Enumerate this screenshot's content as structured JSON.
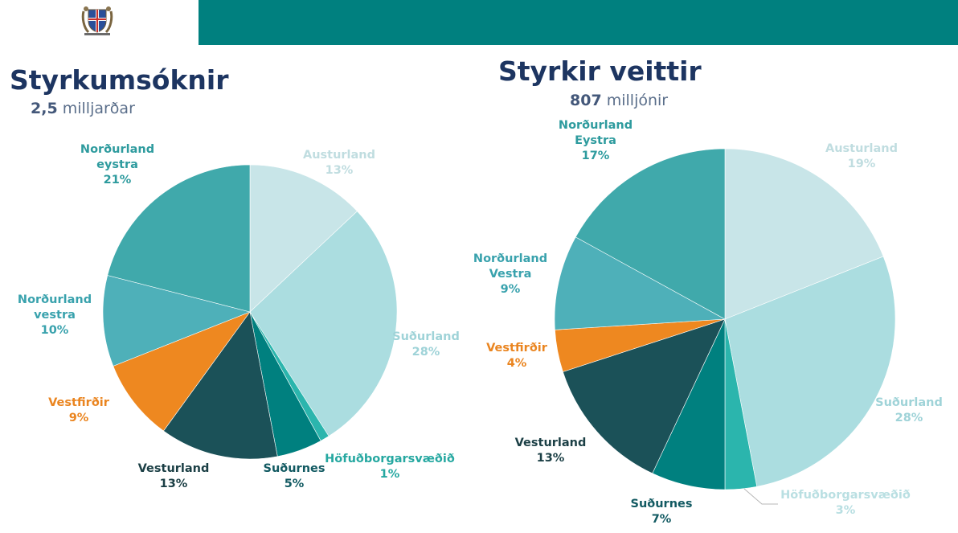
{
  "header": {
    "accent_color": "#00807f",
    "logo": "icelandic-coat-of-arms"
  },
  "chart_data": [
    {
      "type": "pie",
      "title": "Styrkumsóknir",
      "subtitle_value": "2,5",
      "subtitle_unit": "milljarðar",
      "slices": [
        {
          "lines": [
            "Austurland"
          ],
          "pct_label": "13%",
          "value": 13,
          "color": "#c8e5e8",
          "label_color": "#c0dde0"
        },
        {
          "lines": [
            "Suðurland"
          ],
          "pct_label": "28%",
          "value": 28,
          "color": "#abdde0",
          "label_color": "#9fd3d8"
        },
        {
          "lines": [
            "Höfuðborgarsvæðið"
          ],
          "pct_label": "1%",
          "value": 1,
          "color": "#2bb5ad",
          "label_color": "#26a8a1"
        },
        {
          "lines": [
            "Suðurnes"
          ],
          "pct_label": "5%",
          "value": 5,
          "color": "#00807f",
          "label_color": "#125a62"
        },
        {
          "lines": [
            "Vesturland"
          ],
          "pct_label": "13%",
          "value": 13,
          "color": "#1b5158",
          "label_color": "#1b3f45"
        },
        {
          "lines": [
            "Vestfirðir"
          ],
          "pct_label": "9%",
          "value": 9,
          "color": "#ee8820",
          "label_color": "#ea8520"
        },
        {
          "lines": [
            "Norðurland",
            "vestra"
          ],
          "pct_label": "10%",
          "value": 10,
          "color": "#4eb0b9",
          "label_color": "#39a2ad"
        },
        {
          "lines": [
            "Norðurland",
            "eystra"
          ],
          "pct_label": "21%",
          "value": 21,
          "color": "#40a9ab",
          "label_color": "#2e9b9e"
        }
      ]
    },
    {
      "type": "pie",
      "title": "Styrkir veittir",
      "subtitle_value": "807",
      "subtitle_unit": "milljónir",
      "slices": [
        {
          "lines": [
            "Austurland"
          ],
          "pct_label": "19%",
          "value": 19,
          "color": "#c8e5e8",
          "label_color": "#c0dde0"
        },
        {
          "lines": [
            "Suðurland"
          ],
          "pct_label": "28%",
          "value": 28,
          "color": "#abdde0",
          "label_color": "#9fd3d8"
        },
        {
          "lines": [
            "Höfuðborgarsvæðið"
          ],
          "pct_label": "3%",
          "value": 3,
          "color": "#2bb5ad",
          "label_color": "#b9dfe2"
        },
        {
          "lines": [
            "Suðurnes"
          ],
          "pct_label": "7%",
          "value": 7,
          "color": "#00807f",
          "label_color": "#125a62"
        },
        {
          "lines": [
            "Vesturland"
          ],
          "pct_label": "13%",
          "value": 13,
          "color": "#1b5158",
          "label_color": "#1b3f45"
        },
        {
          "lines": [
            "Vestfirðir"
          ],
          "pct_label": "4%",
          "value": 4,
          "color": "#ee8820",
          "label_color": "#ea8520"
        },
        {
          "lines": [
            "Norðurland",
            "Vestra"
          ],
          "pct_label": "9%",
          "value": 9,
          "color": "#4eb0b9",
          "label_color": "#39a2ad"
        },
        {
          "lines": [
            "Norðurland",
            "Eystra"
          ],
          "pct_label": "17%",
          "value": 17,
          "color": "#40a9ab",
          "label_color": "#2e9b9e"
        }
      ]
    }
  ]
}
